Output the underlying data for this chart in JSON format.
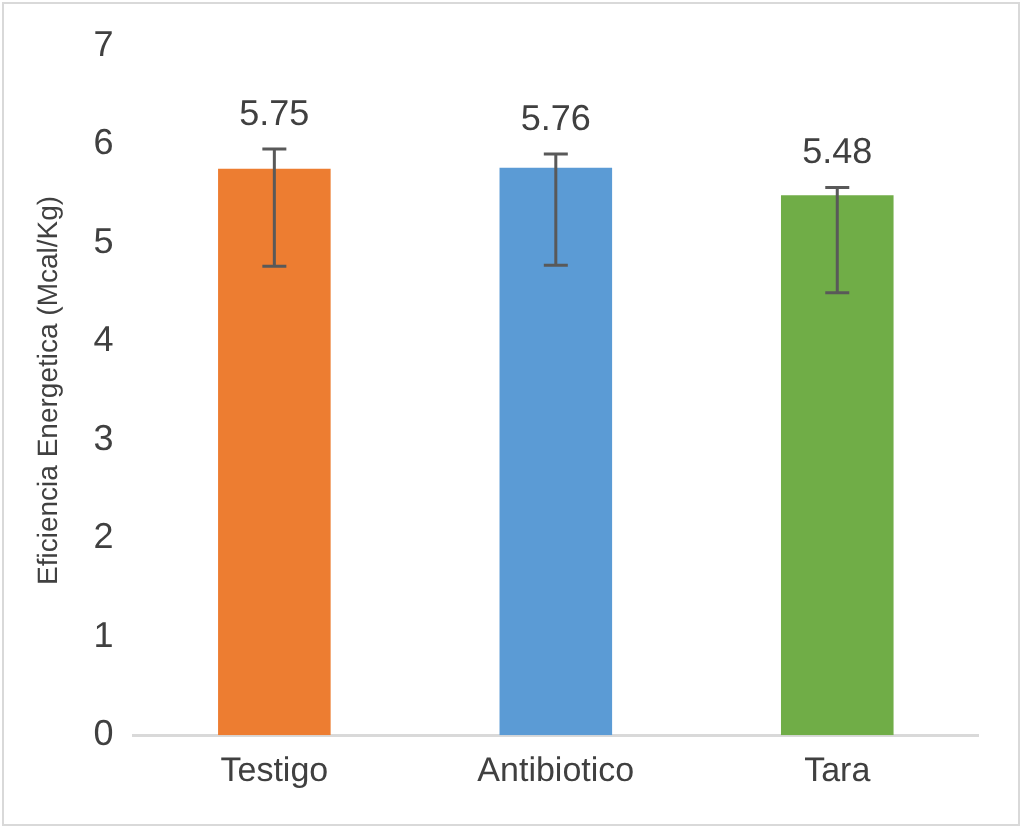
{
  "chart_data": {
    "type": "bar",
    "ylabel": "Eficiencia Energetica (Mcal/Kg)",
    "categories": [
      "Testigo",
      "Antibiotico",
      "Tara"
    ],
    "values": [
      5.75,
      5.76,
      5.48
    ],
    "colors": [
      "#ed7d31",
      "#5b9bd5",
      "#70ad47"
    ],
    "errors": [
      [
        4.76,
        5.95
      ],
      [
        4.77,
        5.9
      ],
      [
        4.49,
        5.56
      ]
    ],
    "ylim": [
      0,
      7
    ],
    "yticks": [
      0,
      1,
      2,
      3,
      4,
      5,
      6,
      7
    ],
    "grid": false,
    "data_labels": true
  }
}
